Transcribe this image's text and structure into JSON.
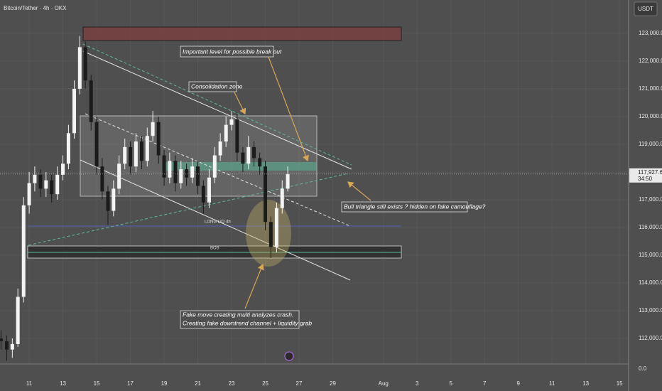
{
  "header": {
    "title": "Bitcoin/Tether · 4h · OKX",
    "currency": "USDT"
  },
  "chart_data": {
    "type": "candlestick",
    "x": [
      9.33,
      9.67,
      10,
      10.33,
      10.67,
      11,
      11.33,
      11.67,
      12,
      12.33,
      12.67,
      13,
      13.33,
      13.67,
      14,
      14.33,
      14.67,
      15,
      15.33,
      15.67,
      16,
      16.33,
      16.67,
      17,
      17.33,
      17.67,
      18,
      18.33,
      18.67,
      19,
      19.33,
      19.67,
      20,
      20.33,
      20.67,
      21,
      21.33,
      21.67,
      22,
      22.33,
      22.67,
      23,
      23.33,
      23.67,
      24,
      24.33,
      24.67,
      25,
      25.33,
      25.67,
      26,
      26.33
    ],
    "open": [
      112000,
      111900,
      111600,
      111800,
      113500,
      116800,
      117600,
      117900,
      117400,
      117700,
      117200,
      117900,
      118300,
      119400,
      121000,
      122500,
      121300,
      119800,
      118200,
      117300,
      116600,
      117400,
      118300,
      118900,
      118200,
      119100,
      118400,
      119300,
      119800,
      118600,
      117800,
      118400,
      117600,
      118100,
      117800,
      118200,
      117500,
      116900,
      117800,
      118600,
      119100,
      119700,
      119900,
      118700,
      118300,
      118900,
      118500,
      118200,
      116200,
      115300,
      116700,
      117400
    ],
    "high": [
      112300,
      112100,
      112000,
      113800,
      117100,
      118000,
      118200,
      118100,
      118000,
      117900,
      118200,
      118600,
      119700,
      121300,
      122900,
      122700,
      121500,
      120000,
      118500,
      117500,
      117700,
      118600,
      119200,
      119100,
      119400,
      119300,
      119600,
      120200,
      120000,
      118800,
      118700,
      118600,
      118400,
      118300,
      118500,
      118400,
      117700,
      118100,
      118900,
      119400,
      120000,
      120200,
      120100,
      118900,
      119300,
      119100,
      118700,
      118400,
      116400,
      116900,
      117700,
      118200
    ],
    "low": [
      111600,
      111200,
      111300,
      111700,
      113300,
      116500,
      117300,
      117100,
      117100,
      116900,
      117000,
      117700,
      118100,
      119200,
      120800,
      121000,
      119500,
      117900,
      117000,
      116100,
      116400,
      117200,
      118100,
      117900,
      118000,
      118100,
      118200,
      119100,
      118300,
      117500,
      117600,
      117300,
      117400,
      117500,
      117600,
      117200,
      116500,
      116700,
      117600,
      118400,
      118900,
      119500,
      118400,
      118000,
      118100,
      118200,
      117900,
      115900,
      114900,
      115100,
      116500,
      117300
    ],
    "close": [
      111900,
      111600,
      111800,
      113500,
      116800,
      117600,
      117900,
      117400,
      117700,
      117200,
      117900,
      118300,
      119400,
      121000,
      122500,
      121300,
      119800,
      118200,
      117300,
      116600,
      117400,
      118300,
      118900,
      118200,
      119100,
      118400,
      119300,
      119800,
      118600,
      117800,
      118400,
      117600,
      118100,
      117800,
      118200,
      117500,
      116900,
      117800,
      118600,
      119100,
      119700,
      119900,
      118700,
      118300,
      118900,
      118500,
      118200,
      116200,
      115300,
      116700,
      117400,
      117927.6
    ],
    "up_color": "#f4f4f4",
    "down_color": "#1b1b1b",
    "xlim": [
      9.27,
      46.54
    ],
    "ylim": [
      111080,
      124200
    ],
    "xticks": [
      11,
      13,
      15,
      17,
      19,
      21,
      23,
      25,
      27,
      29,
      {
        "value": 32,
        "label": "Aug"
      },
      {
        "value": 34,
        "label": "3"
      },
      {
        "value": 36,
        "label": "5"
      },
      {
        "value": 38,
        "label": "7"
      },
      {
        "value": 40,
        "label": "9"
      },
      {
        "value": 42,
        "label": "11"
      },
      {
        "value": 44,
        "label": "13"
      },
      {
        "value": 46,
        "label": "15"
      }
    ],
    "yticks": [
      {
        "value": 112000,
        "label": "112,000.0"
      },
      {
        "value": 113000,
        "label": "113,000.0"
      },
      {
        "value": 114000,
        "label": "114,000.0"
      },
      {
        "value": 115000,
        "label": "115,000.0"
      },
      {
        "value": 116000,
        "label": "116,000.0"
      },
      {
        "value": 117000,
        "label": "117,000.0"
      },
      {
        "value": 118000,
        "label": "118,000.0"
      },
      {
        "value": 119000,
        "label": "119,000.0"
      },
      {
        "value": 120000,
        "label": "120,000.0"
      },
      {
        "value": 121000,
        "label": "121,000.0"
      },
      {
        "value": 122000,
        "label": "122,000.0"
      },
      {
        "value": 123000,
        "label": "123,000.0"
      }
    ],
    "last_price_label": "117,927.6",
    "countdown": "34:50",
    "volume_zero_label": "0.0",
    "annotations": {
      "breakout": "Important level for possible break out",
      "consolidation": "Consolidation zone",
      "triangle": "Bull triangle still exists ? hidden on fake camouflage?",
      "long_liq": "LONG LIQ 4h",
      "bos": "BOS",
      "fake_move": [
        "Fake move creating multi analyzes crash.",
        "Creating fake downtrend channel + liquidity grab"
      ]
    }
  }
}
